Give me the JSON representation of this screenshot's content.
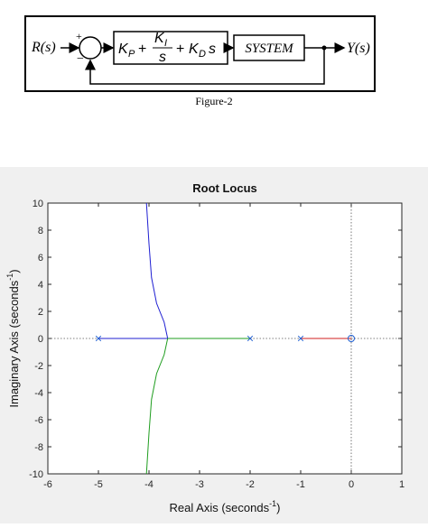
{
  "block_diagram": {
    "input_label": "R(s)",
    "output_label": "Y(s)",
    "plus_sign": "+",
    "minus_sign": "−",
    "controller": {
      "kp": "K",
      "kp_sub": "P",
      "plus1": "+",
      "ki": "K",
      "ki_sub": "I",
      "s_den": "s",
      "plus2": "+",
      "kd": "K",
      "kd_sub": "D",
      "s_mult": "s"
    },
    "system_label": "SYSTEM",
    "caption": "Figure-2"
  },
  "chart_data": {
    "type": "line",
    "title": "Root Locus",
    "xlabel": "Real Axis (seconds",
    "xlabel_sup": "-1",
    "xlabel_end": ")",
    "ylabel": "Imaginary Axis (seconds",
    "ylabel_sup": "-1",
    "ylabel_end": ")",
    "xlim": [
      -6,
      1
    ],
    "ylim": [
      -10,
      10
    ],
    "xticks": [
      "-6",
      "-5",
      "-4",
      "-3",
      "-2",
      "-1",
      "0",
      "1"
    ],
    "yticks": [
      "10",
      "8",
      "6",
      "4",
      "2",
      "0",
      "-2",
      "-4",
      "-6",
      "-8",
      "-10"
    ],
    "grid": false,
    "poles": [
      [
        -5,
        0
      ],
      [
        -2,
        0
      ],
      [
        -1,
        0
      ]
    ],
    "zeros": [
      [
        0,
        0
      ]
    ],
    "series": [
      {
        "color": "#1f1fd2",
        "points": [
          [
            -4.05,
            10
          ],
          [
            -4.0,
            7
          ],
          [
            -3.95,
            4.5
          ],
          [
            -3.85,
            2.6
          ],
          [
            -3.7,
            1.2
          ],
          [
            -3.63,
            0
          ]
        ]
      },
      {
        "color": "#1f1fd2",
        "points": [
          [
            -5,
            0
          ],
          [
            -3.63,
            0
          ]
        ]
      },
      {
        "color": "#1f9d1f",
        "points": [
          [
            -2,
            0
          ],
          [
            -3.63,
            0
          ]
        ]
      },
      {
        "color": "#1f9d1f",
        "points": [
          [
            -3.63,
            0
          ],
          [
            -3.7,
            -1.2
          ],
          [
            -3.85,
            -2.6
          ],
          [
            -3.95,
            -4.5
          ],
          [
            -4.0,
            -7
          ],
          [
            -4.05,
            -10
          ]
        ]
      },
      {
        "color": "#d21f1f",
        "points": [
          [
            -1,
            0
          ],
          [
            0,
            0
          ]
        ]
      }
    ]
  }
}
